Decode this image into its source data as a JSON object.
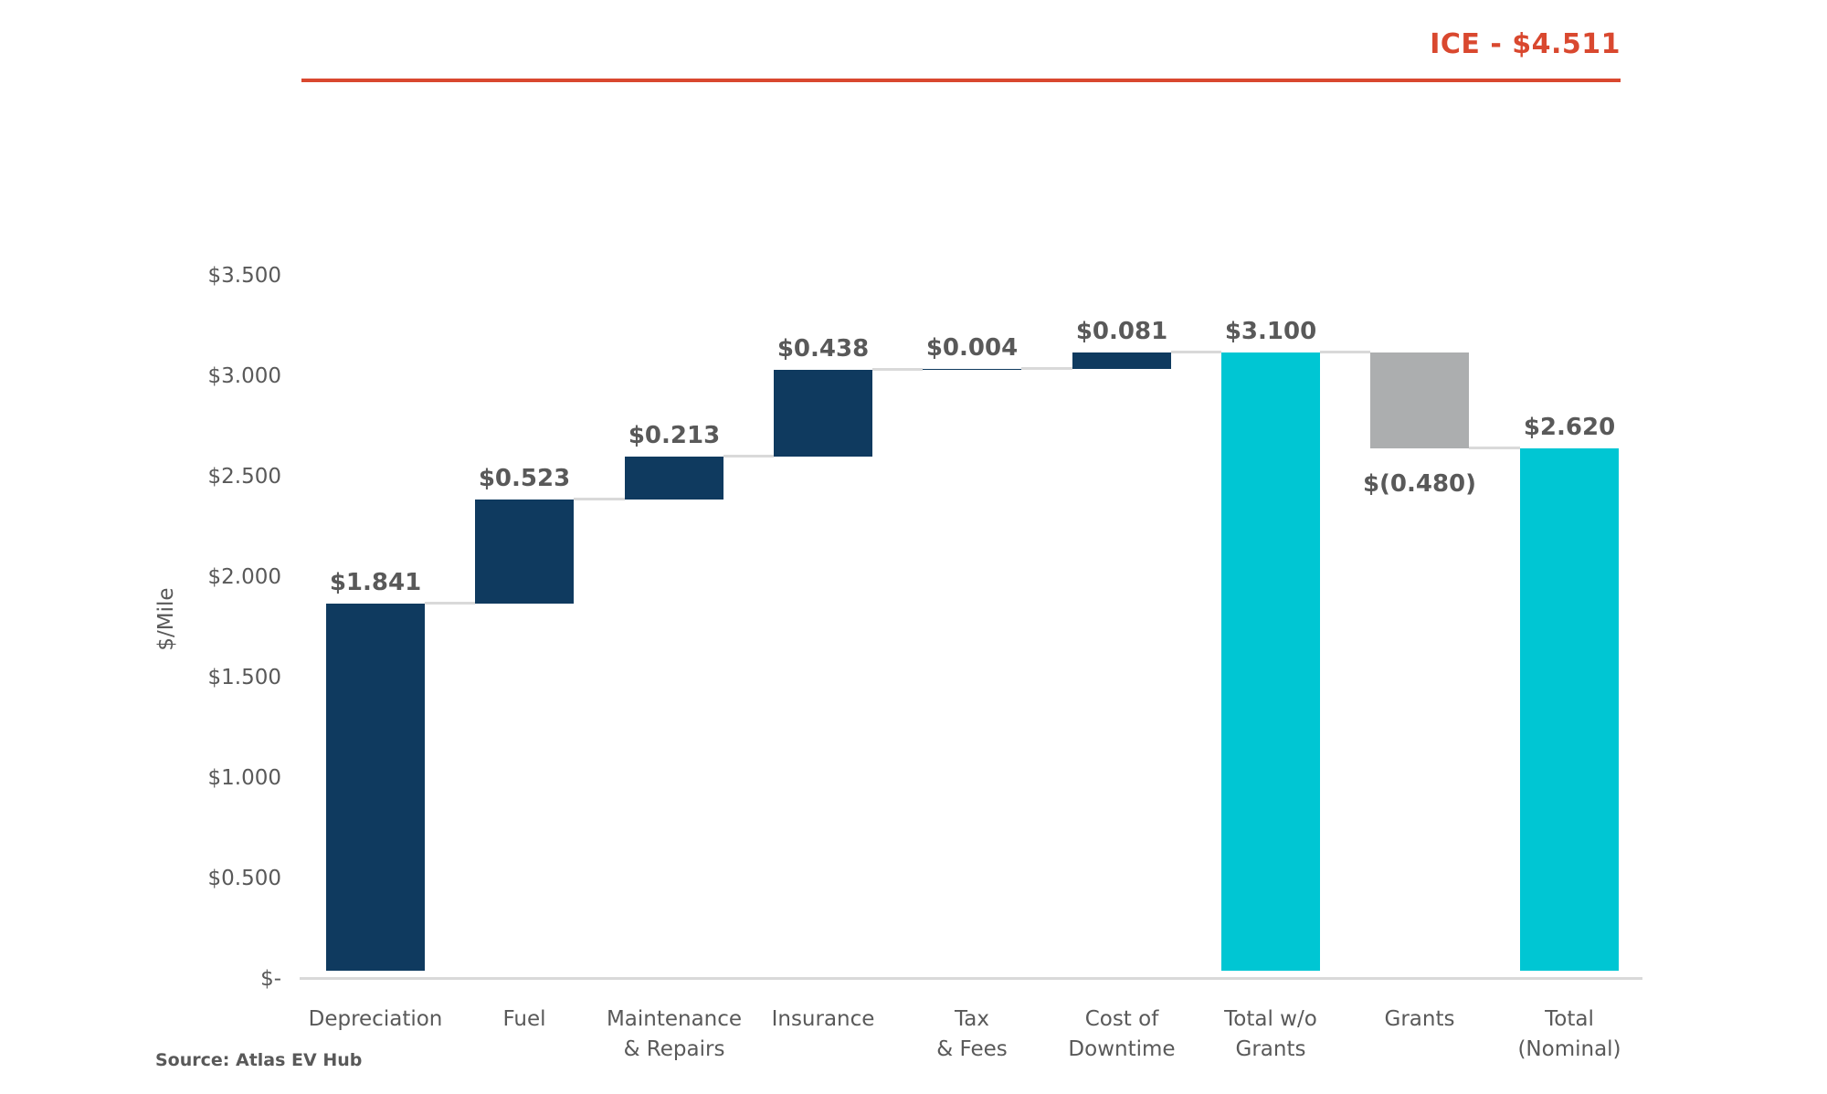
{
  "annotation": {
    "label": "ICE - $4.511",
    "color": "#d9482f"
  },
  "source_note": "Source: Atlas EV Hub",
  "chart_data": {
    "type": "bar",
    "subtype": "waterfall",
    "title": "",
    "xlabel": "",
    "ylabel": "$/Mile",
    "ylim": [
      0,
      3.5
    ],
    "grid": false,
    "y_ticks": [
      "$3.500",
      "$3.000",
      "$2.500",
      "$2.000",
      "$1.500",
      "$1.000",
      "$0.500",
      "$-"
    ],
    "reference_line": {
      "label": "ICE - $4.511",
      "value": 4.511,
      "color": "#d9482f"
    },
    "categories": [
      "Depreciation",
      "Fuel",
      "Maintenance & Repairs",
      "Insurance",
      "Tax & Fees",
      "Cost of Downtime",
      "Total w/o Grants",
      "Grants",
      "Total (Nominal)"
    ],
    "category_lines": [
      [
        "Depreciation"
      ],
      [
        "Fuel"
      ],
      [
        "Maintenance",
        "& Repairs"
      ],
      [
        "Insurance"
      ],
      [
        "Tax",
        "& Fees"
      ],
      [
        "Cost of",
        "Downtime"
      ],
      [
        "Total w/o",
        "Grants"
      ],
      [
        "Grants"
      ],
      [
        "Total",
        "(Nominal)"
      ]
    ],
    "values": [
      1.841,
      0.523,
      0.213,
      0.438,
      0.004,
      0.081,
      3.1,
      -0.48,
      2.62
    ],
    "value_labels": [
      "$1.841",
      "$0.523",
      "$0.213",
      "$0.438",
      "$0.004",
      "$0.081",
      "$3.100",
      "$(0.480)",
      "$2.620"
    ],
    "bar_types": [
      "increase",
      "increase",
      "increase",
      "increase",
      "increase",
      "increase",
      "total",
      "decrease",
      "total"
    ],
    "colors": {
      "increase": "#0f3a5f",
      "total": "#00c6d3",
      "decrease": "#acaeaf",
      "connector": "#d9d9d9",
      "label_text": "#595959"
    },
    "source": "Source: Atlas EV Hub"
  }
}
